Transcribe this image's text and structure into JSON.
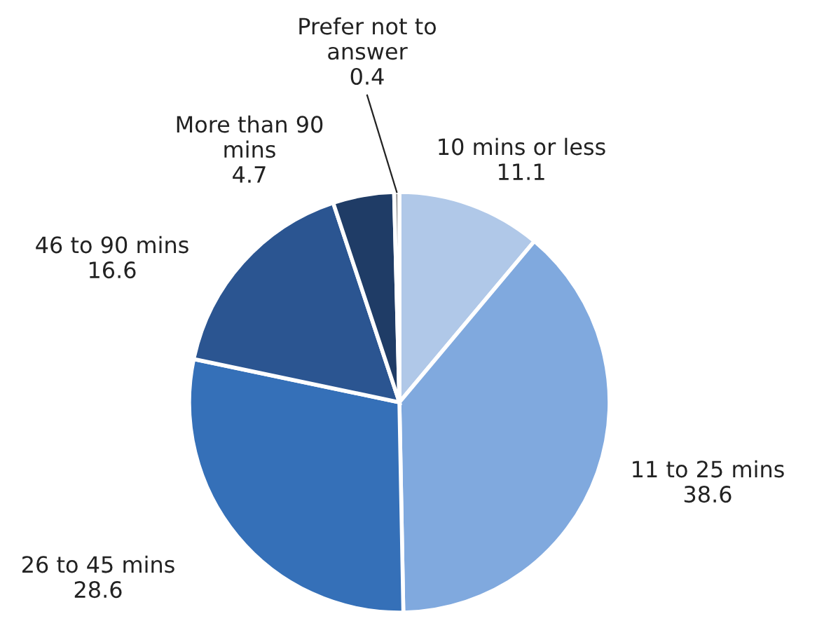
{
  "chart_data": {
    "type": "pie",
    "categories": [
      "10 mins or less",
      "11 to 25 mins",
      "26 to 45 mins",
      "46 to 90 mins",
      "More than 90\nmins",
      "Prefer not to\nanswer"
    ],
    "values": [
      11.1,
      38.6,
      28.6,
      16.6,
      4.7,
      0.4
    ],
    "colors": [
      "#b0c8e8",
      "#80a9de",
      "#3570b8",
      "#2b5591",
      "#1f3c66",
      "#8c8c8c"
    ],
    "data_labels": true
  }
}
